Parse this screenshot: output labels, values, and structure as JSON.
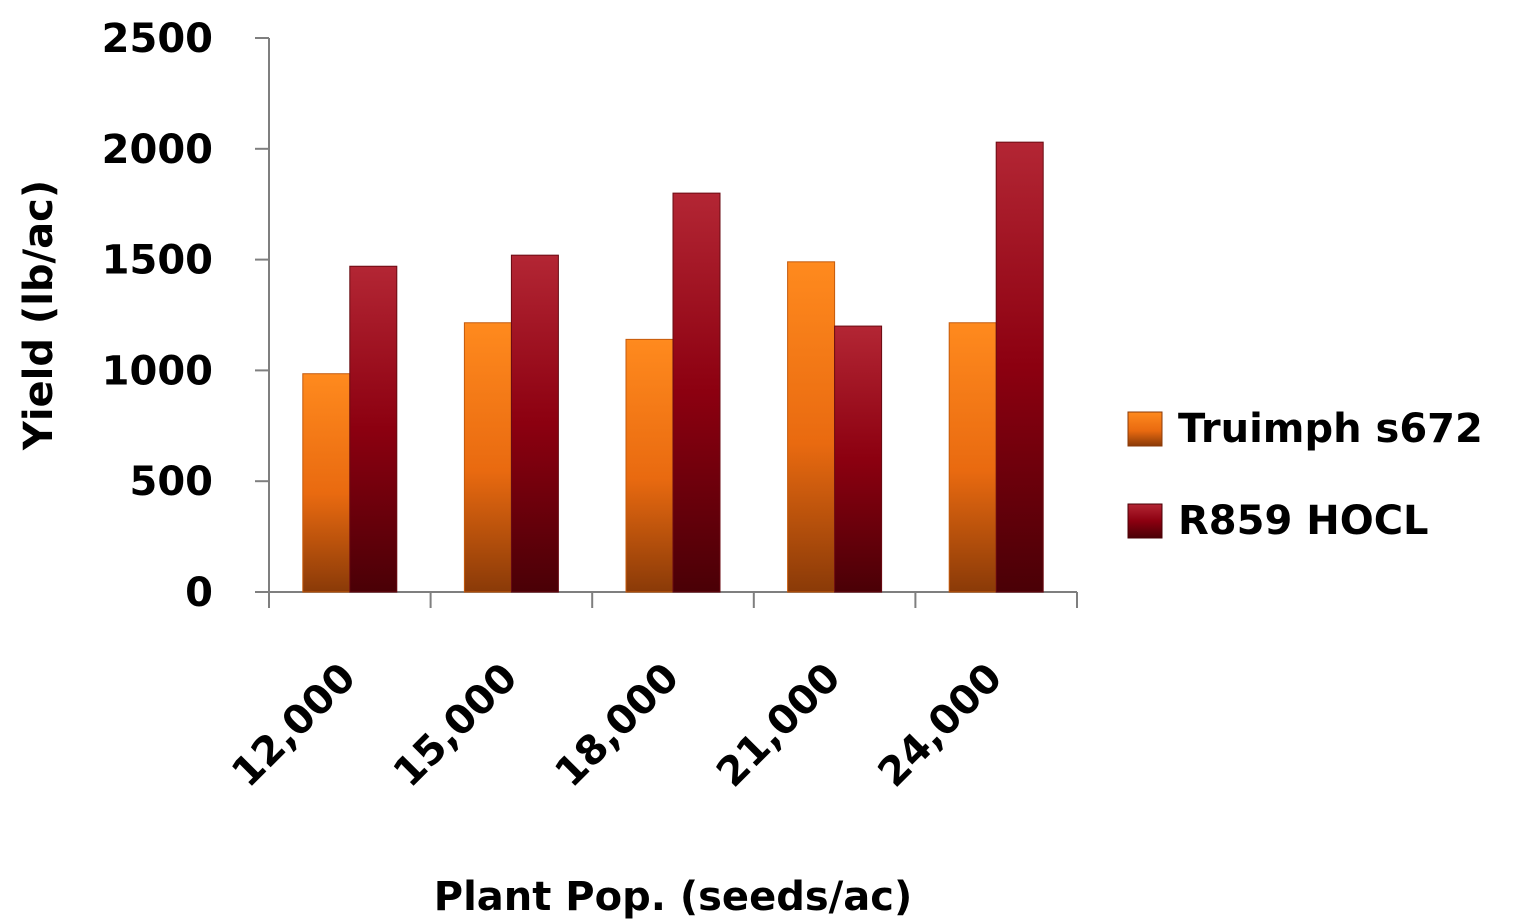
{
  "chart_data": {
    "type": "bar",
    "title": "",
    "xlabel": "Plant Pop. (seeds/ac)",
    "ylabel": "Yield (lb/ac)",
    "ylim": [
      0,
      2500
    ],
    "yticks": [
      "0",
      "500",
      "1000",
      "1500",
      "2000",
      "2500"
    ],
    "categories": [
      "12,000",
      "15,000",
      "18,000",
      "21,000",
      "24,000"
    ],
    "series": [
      {
        "name": "Truimph s672",
        "values": [
          985,
          1215,
          1140,
          1490,
          1215
        ],
        "color": "#f07d1e"
      },
      {
        "name": "R859 HOCL",
        "values": [
          1470,
          1520,
          1800,
          1200,
          2030
        ],
        "color": "#a0111c"
      }
    ],
    "grid": false,
    "legend_position": "right"
  }
}
